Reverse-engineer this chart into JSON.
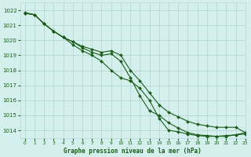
{
  "title": "Graphe pression niveau de la mer (hPa)",
  "background_color": "#d4f0ec",
  "grid_color": "#b8d8d4",
  "line_color": "#1a5c1a",
  "marker_color": "#1a5c1a",
  "xlim": [
    -0.5,
    23
  ],
  "ylim": [
    1013.5,
    1022.5
  ],
  "yticks": [
    1014,
    1015,
    1016,
    1017,
    1018,
    1019,
    1020,
    1021,
    1022
  ],
  "xticks": [
    0,
    1,
    2,
    3,
    4,
    5,
    6,
    7,
    8,
    9,
    10,
    11,
    12,
    13,
    14,
    15,
    16,
    17,
    18,
    19,
    20,
    21,
    22,
    23
  ],
  "series": [
    {
      "x": [
        0,
        1,
        2,
        3,
        4,
        5,
        6,
        7,
        8,
        9,
        10,
        11,
        12,
        13,
        14,
        15,
        16,
        17,
        18,
        19,
        20,
        21,
        22,
        23
      ],
      "y": [
        1021.8,
        1021.7,
        1021.1,
        1020.6,
        1020.2,
        1019.7,
        1019.3,
        1019.0,
        1018.6,
        1018.0,
        1017.5,
        1017.3,
        1016.8,
        1016.0,
        1014.8,
        1014.0,
        1013.9,
        1013.75,
        1013.65,
        1013.6,
        1013.6,
        1013.65,
        1013.7,
        1013.75
      ]
    },
    {
      "x": [
        0,
        1,
        2,
        3,
        4,
        5,
        6,
        7,
        8,
        9,
        10,
        11,
        12,
        13,
        14,
        15,
        16,
        17,
        18,
        19,
        20,
        21,
        22,
        23
      ],
      "y": [
        1021.8,
        1021.7,
        1021.1,
        1020.6,
        1020.2,
        1019.9,
        1019.6,
        1019.4,
        1019.2,
        1019.3,
        1019.0,
        1018.0,
        1017.3,
        1016.5,
        1015.7,
        1015.2,
        1014.9,
        1014.6,
        1014.4,
        1014.3,
        1014.2,
        1014.2,
        1014.2,
        1013.85
      ]
    },
    {
      "x": [
        0,
        1,
        2,
        3,
        4,
        5,
        6,
        7,
        8,
        9,
        10,
        11,
        12,
        13,
        14,
        15,
        16,
        17,
        18,
        19,
        20,
        21,
        22,
        23
      ],
      "y": [
        1021.85,
        1021.7,
        1021.1,
        1020.6,
        1020.2,
        1019.9,
        1019.5,
        1019.2,
        1019.0,
        1019.1,
        1018.6,
        1017.5,
        1016.3,
        1015.3,
        1015.0,
        1014.5,
        1014.15,
        1013.85,
        1013.7,
        1013.65,
        1013.6,
        1013.6,
        1013.7,
        1013.85
      ]
    }
  ]
}
